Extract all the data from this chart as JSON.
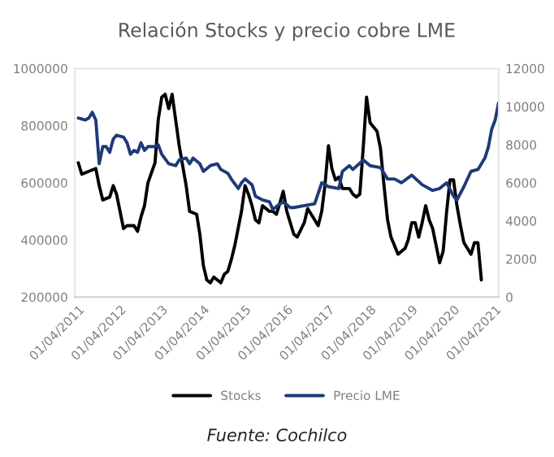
{
  "chart_data": {
    "type": "line",
    "title": "Relación Stocks y precio cobre LME",
    "annotations": [
      "Fuente: Cochilco"
    ],
    "legend": "bottom",
    "grid": false,
    "marker": "none",
    "line_style": "solid",
    "xlim": [
      "2011-03",
      "2021-05"
    ],
    "xticks": [
      {
        "value": "2011-04-01",
        "label": "01/04/2011"
      },
      {
        "value": "2012-04-01",
        "label": "01/04/2012"
      },
      {
        "value": "2013-04-01",
        "label": "01/04/2013"
      },
      {
        "value": "2014-04-01",
        "label": "01/04/2014"
      },
      {
        "value": "2015-04-01",
        "label": "01/04/2015"
      },
      {
        "value": "2016-04-01",
        "label": "01/04/2016"
      },
      {
        "value": "2017-04-01",
        "label": "01/04/2017"
      },
      {
        "value": "2018-04-01",
        "label": "01/04/2018"
      },
      {
        "value": "2019-04-01",
        "label": "01/04/2019"
      },
      {
        "value": "2020-04-01",
        "label": "01/04/2020"
      },
      {
        "value": "2021-04-01",
        "label": "01/04/2021"
      }
    ],
    "ylim": [
      200000,
      1000000
    ],
    "yticks": [
      200000,
      400000,
      600000,
      800000,
      1000000
    ],
    "y2lim": [
      0,
      12000
    ],
    "y2ticks": [
      0,
      2000,
      4000,
      6000,
      8000,
      10000,
      12000
    ],
    "series": [
      {
        "name": "Stocks",
        "color": "#000000",
        "x": [
          "2011-04",
          "2011-05",
          "2011-07",
          "2011-09",
          "2011-10",
          "2011-11",
          "2012-01",
          "2012-02",
          "2012-03",
          "2012-05",
          "2012-06",
          "2012-08",
          "2012-09",
          "2012-10",
          "2012-11",
          "2012-12",
          "2013-02",
          "2013-03",
          "2013-04",
          "2013-05",
          "2013-06",
          "2013-07",
          "2013-08",
          "2013-09",
          "2013-11",
          "2013-12",
          "2014-02",
          "2014-03",
          "2014-04",
          "2014-05",
          "2014-06",
          "2014-07",
          "2014-09",
          "2014-10",
          "2014-11",
          "2014-12",
          "2015-01",
          "2015-03",
          "2015-04",
          "2015-05",
          "2015-06",
          "2015-07",
          "2015-08",
          "2015-09",
          "2015-11",
          "2015-12",
          "2016-01",
          "2016-02",
          "2016-03",
          "2016-04",
          "2016-06",
          "2016-07",
          "2016-09",
          "2016-10",
          "2016-11",
          "2017-01",
          "2017-02",
          "2017-03",
          "2017-04",
          "2017-05",
          "2017-06",
          "2017-07",
          "2017-08",
          "2017-10",
          "2017-11",
          "2017-12",
          "2018-01",
          "2018-02",
          "2018-03",
          "2018-04",
          "2018-06",
          "2018-07",
          "2018-08",
          "2018-09",
          "2018-10",
          "2018-11",
          "2018-12",
          "2019-02",
          "2019-03",
          "2019-04",
          "2019-05",
          "2019-06",
          "2019-07",
          "2019-08",
          "2019-09",
          "2019-10",
          "2019-11",
          "2019-12",
          "2020-01",
          "2020-02",
          "2020-03",
          "2020-04",
          "2020-05",
          "2020-06",
          "2020-07",
          "2020-08",
          "2020-09",
          "2020-10",
          "2020-11",
          "2020-12"
        ],
        "values": [
          670000,
          630000,
          640000,
          650000,
          590000,
          540000,
          550000,
          590000,
          560000,
          440000,
          450000,
          450000,
          430000,
          480000,
          520000,
          600000,
          670000,
          820000,
          900000,
          910000,
          860000,
          910000,
          820000,
          730000,
          590000,
          500000,
          490000,
          420000,
          310000,
          260000,
          250000,
          270000,
          250000,
          280000,
          290000,
          330000,
          380000,
          500000,
          590000,
          560000,
          520000,
          470000,
          460000,
          520000,
          500000,
          500000,
          490000,
          530000,
          570000,
          500000,
          420000,
          410000,
          460000,
          510000,
          490000,
          450000,
          500000,
          590000,
          730000,
          650000,
          610000,
          620000,
          580000,
          580000,
          560000,
          550000,
          560000,
          730000,
          900000,
          810000,
          780000,
          720000,
          590000,
          470000,
          410000,
          380000,
          350000,
          370000,
          400000,
          460000,
          460000,
          410000,
          460000,
          520000,
          470000,
          440000,
          380000,
          320000,
          360000,
          500000,
          610000,
          610000,
          520000,
          450000,
          390000,
          370000,
          350000,
          390000,
          390000,
          260000
        ]
      },
      {
        "name": "Precio LME",
        "color": "#1f3a78",
        "axis": "y2",
        "x": [
          "2011-04",
          "2011-06",
          "2011-07",
          "2011-08",
          "2011-09",
          "2011-10",
          "2011-11",
          "2011-12",
          "2012-01",
          "2012-02",
          "2012-03",
          "2012-05",
          "2012-06",
          "2012-07",
          "2012-08",
          "2012-09",
          "2012-10",
          "2012-11",
          "2012-12",
          "2013-02",
          "2013-03",
          "2013-04",
          "2013-06",
          "2013-08",
          "2013-09",
          "2013-11",
          "2013-12",
          "2014-01",
          "2014-03",
          "2014-04",
          "2014-06",
          "2014-08",
          "2014-09",
          "2014-11",
          "2014-12",
          "2015-02",
          "2015-03",
          "2015-04",
          "2015-06",
          "2015-07",
          "2015-09",
          "2015-11",
          "2015-12",
          "2016-02",
          "2016-03",
          "2016-05",
          "2016-06",
          "2016-09",
          "2016-12",
          "2017-02",
          "2017-04",
          "2017-07",
          "2017-08",
          "2017-10",
          "2017-11",
          "2018-02",
          "2018-04",
          "2018-07",
          "2018-09",
          "2018-11",
          "2019-01",
          "2019-04",
          "2019-07",
          "2019-10",
          "2019-12",
          "2020-02",
          "2020-04",
          "2020-05",
          "2020-07",
          "2020-09",
          "2020-11",
          "2021-01",
          "2021-02",
          "2021-03",
          "2021-04",
          "2021-05"
        ],
        "values": [
          9400,
          9300,
          9400,
          9700,
          9300,
          7000,
          7900,
          7900,
          7600,
          8300,
          8500,
          8400,
          8100,
          7500,
          7700,
          7600,
          8100,
          7700,
          7900,
          7900,
          8000,
          7500,
          7000,
          6900,
          7200,
          7300,
          7000,
          7300,
          7000,
          6600,
          6900,
          7000,
          6700,
          6500,
          6200,
          5700,
          6000,
          6200,
          5900,
          5300,
          5100,
          5000,
          4600,
          4900,
          5000,
          4700,
          4700,
          4800,
          4900,
          6000,
          5800,
          5700,
          6600,
          6900,
          6700,
          7200,
          6900,
          6800,
          6200,
          6200,
          6000,
          6400,
          5900,
          5600,
          5700,
          6000,
          5300,
          5100,
          5800,
          6600,
          6700,
          7300,
          7900,
          8800,
          9300,
          10200
        ]
      }
    ]
  }
}
